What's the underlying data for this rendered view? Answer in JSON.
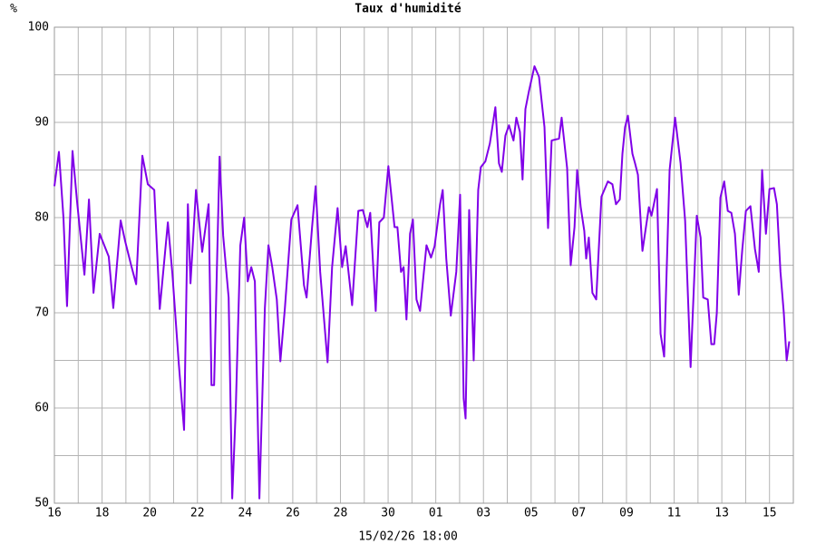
{
  "chart_data": {
    "type": "line",
    "title": "Taux d'humidité",
    "y_label": "%",
    "x_label": "15/02/26 18:00",
    "color": "#8000e8",
    "title_color": "#8000e8",
    "grid": true,
    "xlim": [
      0,
      31
    ],
    "xticks": [
      {
        "value": 0,
        "label": "16"
      },
      {
        "value": 2,
        "label": "18"
      },
      {
        "value": 4,
        "label": "20"
      },
      {
        "value": 6,
        "label": "22"
      },
      {
        "value": 8,
        "label": "24"
      },
      {
        "value": 10,
        "label": "26"
      },
      {
        "value": 12,
        "label": "28"
      },
      {
        "value": 14,
        "label": "30"
      },
      {
        "value": 16,
        "label": "01"
      },
      {
        "value": 18,
        "label": "03"
      },
      {
        "value": 20,
        "label": "05"
      },
      {
        "value": 22,
        "label": "07"
      },
      {
        "value": 24,
        "label": "09"
      },
      {
        "value": 26,
        "label": "11"
      },
      {
        "value": 28,
        "label": "13"
      },
      {
        "value": 30,
        "label": "15"
      }
    ],
    "xminorticks": [
      1,
      3,
      5,
      7,
      9,
      11,
      13,
      15,
      17,
      19,
      21,
      23,
      25,
      27,
      29
    ],
    "ylim": [
      50,
      100
    ],
    "yticks": [
      50,
      60,
      70,
      80,
      90,
      100
    ],
    "yminorticks": [
      55,
      65,
      75,
      85,
      95
    ],
    "x": [
      0,
      0.19,
      0.38,
      0.53,
      0.76,
      0.95,
      1.26,
      1.45,
      1.64,
      1.9,
      2.28,
      2.47,
      2.78,
      2.97,
      3.24,
      3.43,
      3.69,
      3.92,
      4.19,
      4.42,
      4.76,
      4.95,
      5.22,
      5.44,
      5.6,
      5.71,
      5.94,
      6.2,
      6.47,
      6.59,
      6.7,
      6.93,
      7.08,
      7.31,
      7.46,
      7.61,
      7.8,
      7.96,
      8.11,
      8.26,
      8.41,
      8.6,
      8.83,
      8.98,
      9.14,
      9.33,
      9.48,
      9.67,
      9.94,
      10.2,
      10.47,
      10.58,
      10.81,
      10.96,
      11.15,
      11.46,
      11.65,
      11.88,
      12.07,
      12.22,
      12.49,
      12.75,
      12.94,
      13.13,
      13.25,
      13.48,
      13.63,
      13.82,
      14.01,
      14.27,
      14.39,
      14.54,
      14.65,
      14.77,
      14.92,
      15.04,
      15.19,
      15.34,
      15.61,
      15.8,
      15.95,
      16.18,
      16.29,
      16.44,
      16.63,
      16.86,
      17.02,
      17.17,
      17.25,
      17.4,
      17.59,
      17.78,
      17.89,
      18.08,
      18.27,
      18.5,
      18.65,
      18.77,
      18.92,
      19.07,
      19.26,
      19.38,
      19.53,
      19.64,
      19.76,
      19.91,
      20.14,
      20.33,
      20.56,
      20.71,
      20.86,
      21.17,
      21.28,
      21.51,
      21.66,
      21.82,
      21.93,
      22.08,
      22.23,
      22.31,
      22.42,
      22.57,
      22.73,
      22.95,
      23.22,
      23.41,
      23.56,
      23.72,
      23.83,
      23.94,
      24.06,
      24.25,
      24.36,
      24.48,
      24.67,
      24.94,
      25.05,
      25.28,
      25.43,
      25.58,
      25.81,
      26.04,
      26.27,
      26.46,
      26.69,
      26.95,
      27.11,
      27.22,
      27.41,
      27.56,
      27.68,
      27.79,
      27.94,
      28.1,
      28.25,
      28.4,
      28.55,
      28.71,
      28.86,
      29.01,
      29.2,
      29.39,
      29.55,
      29.69,
      29.85,
      30,
      30.19,
      30.31,
      30.46,
      30.6,
      30.72,
      30.83
    ],
    "values": [
      83.3,
      86.9,
      80,
      70.7,
      87,
      81.7,
      74,
      81.9,
      72.1,
      78.3,
      75.9,
      70.5,
      79.7,
      77.5,
      74.8,
      73,
      86.5,
      83.5,
      82.9,
      70.4,
      79.5,
      74.1,
      64.6,
      57.7,
      81.4,
      73.1,
      82.9,
      76.4,
      81.4,
      62.4,
      62.4,
      86.4,
      78.1,
      71.6,
      50.5,
      60,
      77.1,
      80,
      73.3,
      74.8,
      73.3,
      50.5,
      70.5,
      77.1,
      74.8,
      71.4,
      64.9,
      70.5,
      79.8,
      81.3,
      72.9,
      71.6,
      79,
      83.3,
      74.3,
      64.8,
      74.8,
      81,
      74.8,
      77,
      70.8,
      80.7,
      80.8,
      79,
      80.5,
      70.2,
      79.5,
      80,
      85.4,
      79,
      79,
      74.3,
      74.8,
      69.3,
      78.3,
      79.8,
      71.4,
      70.2,
      77.1,
      75.8,
      77,
      81.4,
      82.9,
      75.7,
      69.7,
      74.3,
      82.4,
      61,
      58.9,
      80.8,
      65,
      82.9,
      85.3,
      85.9,
      87.8,
      91.6,
      85.7,
      84.8,
      88.6,
      89.7,
      88.1,
      90.5,
      89,
      84,
      91.4,
      93.3,
      95.9,
      94.8,
      89.5,
      78.9,
      88.1,
      88.3,
      90.5,
      85.2,
      75,
      79,
      85,
      81.1,
      78.6,
      75.7,
      77.9,
      72.1,
      71.4,
      82.2,
      83.8,
      83.5,
      81.4,
      81.9,
      86.7,
      89.5,
      90.7,
      86.7,
      85.7,
      84.5,
      76.5,
      81.1,
      80.2,
      83,
      67.8,
      65.4,
      85,
      90.5,
      85.7,
      79.7,
      64.3,
      80.2,
      77.9,
      71.6,
      71.4,
      66.7,
      66.7,
      70,
      82.1,
      83.8,
      80.7,
      80.5,
      78.3,
      71.9,
      76.7,
      80.7,
      81.2,
      76.7,
      74.3,
      85,
      78.3,
      83,
      83.1,
      81.4,
      74.3,
      70,
      65,
      67
    ]
  }
}
